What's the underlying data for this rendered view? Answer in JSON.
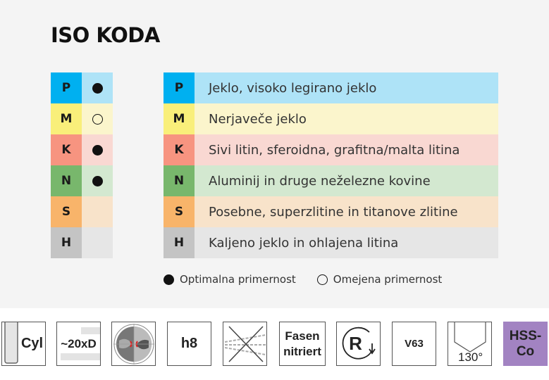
{
  "title": "ISO KODA",
  "rows": [
    {
      "code": "P",
      "label": "Jeklo, visoko legirano jeklo",
      "suitability": "optimal",
      "strong": "#00b0f0",
      "light": "#aee3f7"
    },
    {
      "code": "M",
      "label": "Nerjaveče jeklo",
      "suitability": "limited",
      "strong": "#f9ef7a",
      "light": "#fbf5cc"
    },
    {
      "code": "K",
      "label": "Sivi litin, sferoidna, grafitna/malta litina",
      "suitability": "optimal",
      "strong": "#f79480",
      "light": "#f9d8d2"
    },
    {
      "code": "N",
      "label": "Aluminij in druge neželezne kovine",
      "suitability": "optimal",
      "strong": "#78b76c",
      "light": "#d3e8d0"
    },
    {
      "code": "S",
      "label": "Posebne, superzlitine in titanove zlitine",
      "suitability": "none",
      "strong": "#f8b46a",
      "light": "#f8e3ca"
    },
    {
      "code": "H",
      "label": "Kaljeno jeklo in ohlajena litina",
      "suitability": "none",
      "strong": "#c4c4c4",
      "light": "#e6e6e6"
    }
  ],
  "legend": {
    "optimal": "Optimalna primernost",
    "limited": "Omejena primernost"
  },
  "icons": [
    {
      "name": "cylindrical-shank-icon",
      "text": "Cyl"
    },
    {
      "name": "length-icon",
      "text": "~20xD"
    },
    {
      "name": "cross-section-icon",
      "text": ""
    },
    {
      "name": "tolerance-icon",
      "text": "h8"
    },
    {
      "name": "no-coolant-icon",
      "text": ""
    },
    {
      "name": "coating-icon",
      "line1": "Fasen",
      "line2": "nitriert"
    },
    {
      "name": "right-hand-cutting-icon",
      "text": "R"
    },
    {
      "name": "standard-icon",
      "text": "V63"
    },
    {
      "name": "point-angle-icon",
      "text": "130°"
    },
    {
      "name": "material-icon",
      "line1": "HSS-",
      "line2": "Co",
      "color": "#a283c2"
    }
  ]
}
